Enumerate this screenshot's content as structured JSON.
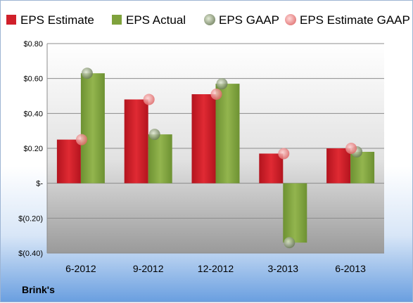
{
  "brand": "Brink's",
  "colors": {
    "eps_estimate": "#d0202a",
    "eps_actual": "#7fa23c",
    "eps_gaap": "#8a9a7a",
    "eps_estimate_gaap": "#f08a8a"
  },
  "chart_data": {
    "type": "bar",
    "title": "",
    "xlabel": "",
    "ylabel": "",
    "categories": [
      "6-2012",
      "9-2012",
      "12-2012",
      "3-2013",
      "6-2013"
    ],
    "series": [
      {
        "name": "EPS Estimate",
        "kind": "bar",
        "values": [
          0.25,
          0.48,
          0.51,
          0.17,
          0.2
        ]
      },
      {
        "name": "EPS Actual",
        "kind": "bar",
        "values": [
          0.63,
          0.28,
          0.57,
          -0.34,
          0.18
        ]
      },
      {
        "name": "EPS GAAP",
        "kind": "marker",
        "values": [
          0.63,
          0.28,
          0.57,
          -0.34,
          0.18
        ]
      },
      {
        "name": "EPS Estimate GAAP",
        "kind": "marker",
        "values": [
          0.25,
          0.48,
          0.51,
          0.17,
          0.2
        ]
      }
    ],
    "ylim": [
      -0.4,
      0.8
    ],
    "yticks": [
      0.8,
      0.6,
      0.4,
      0.2,
      0.0,
      -0.2,
      -0.4
    ],
    "ytick_labels": [
      "$0.80",
      "$0.60",
      "$0.40",
      "$0.20",
      "$-",
      "$(0.20)",
      "$(0.40)"
    ],
    "grid": true,
    "legend_position": "top"
  }
}
